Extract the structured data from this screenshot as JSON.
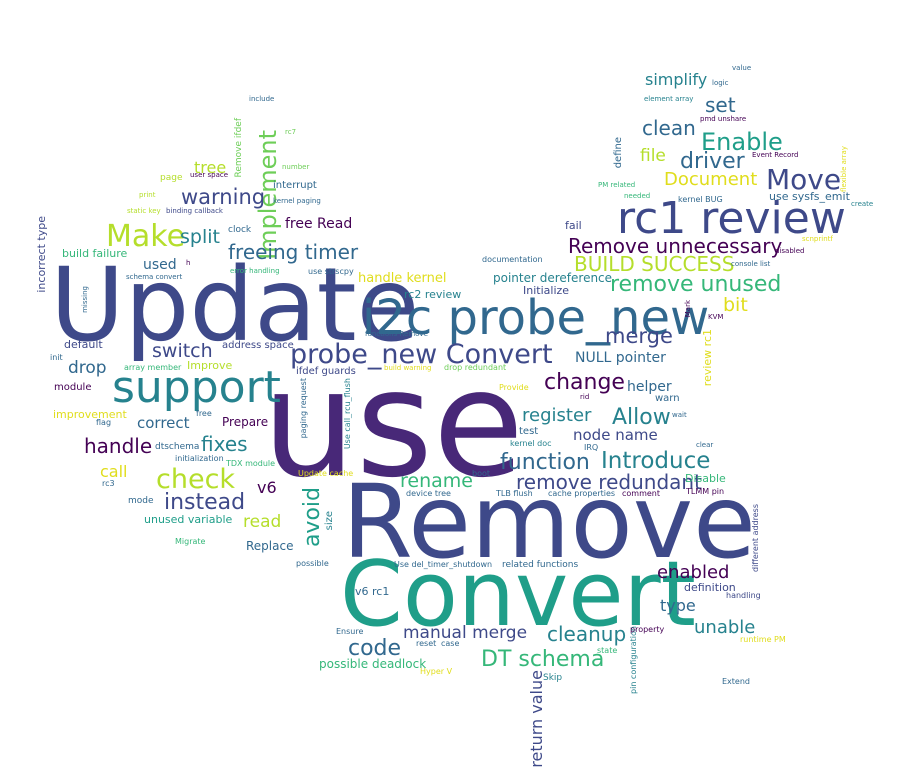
{
  "palette": {
    "dark_purple": "#440154",
    "indigo": "#482878",
    "blue_purple": "#3e4989",
    "slate_blue": "#31688e",
    "teal_blue": "#26828e",
    "teal": "#1f9e89",
    "green": "#35b779",
    "light_green": "#6ece58",
    "lime": "#b5de2b",
    "yellow": "#e0dd1c"
  },
  "words": [
    "use",
    "Remove",
    "Update",
    "Convert",
    "i2c probe_new",
    "rc1 review",
    "support",
    "probe_new Convert",
    "Make",
    "check",
    "Move",
    "DT schema",
    "Implement",
    "Enable",
    "Introduce",
    "remove unused",
    "code",
    "function",
    "change",
    "Allow",
    "driver",
    "BUILD SUCCESS",
    "remove redundant",
    "freeing timer",
    "Remove unnecessary",
    "warning",
    "instead",
    "avoid",
    "fixes",
    "unable",
    "cleanup",
    "clean",
    "merge",
    "enabled",
    "handle",
    "manual merge",
    "rename",
    "Document",
    "set",
    "return value",
    "switch",
    "read",
    "split",
    "drop",
    "register",
    "node name",
    "type",
    "simplify",
    "bit",
    "call",
    "tree",
    "correct",
    "used",
    "file",
    "v6",
    "free Read",
    "handle kernel",
    "NULL pointer",
    "helper",
    "Replace",
    "use sysfs_emit",
    "possible deadlock",
    "pointer dereference",
    "build failure",
    "Prepare",
    "unused variable",
    "incorrect type",
    "improvement",
    "Improve",
    "rc2 review",
    "default",
    "definition",
    "Disable",
    "review rc1",
    "v6 rc1",
    "address space",
    "ifdef guards",
    "size",
    "Initialize",
    "warn",
    "interrupt",
    "define",
    "module",
    "fail",
    "test",
    "mode",
    "page",
    "clock",
    "dtschema",
    "Remove ifdef",
    "related functions",
    "Use del_timer_shutdown",
    "documentation",
    "device tree",
    "TLB flush",
    "cache properties",
    "comment",
    "TLMM pin",
    "Skip",
    "state",
    "Extend",
    "Hyper V",
    "pin configuration",
    "runtime PM",
    "property",
    "handling",
    "different address",
    "Migrate",
    "possible",
    "Ensure",
    "reset",
    "case",
    "Update cache",
    "TDX module",
    "initialization",
    "flag",
    "free",
    "array member",
    "init",
    "rc3",
    "kernel doc",
    "IRQ",
    "Provide",
    "paging request",
    "Use call_rcu_flush",
    "drop redundant",
    "functions Remove",
    "build warning",
    "boot",
    "rid",
    "clear",
    "wait",
    "KVM",
    "Mark",
    "console list",
    "disabled",
    "scnprintf",
    "create",
    "flexible array",
    "Event Record",
    "kernel BUG",
    "PM related",
    "needed",
    "value",
    "logic",
    "element array",
    "pmd unshare",
    "include",
    "rc7",
    "number",
    "user space",
    "print",
    "static key",
    "binding callback",
    "kernel paging",
    "schema convert",
    "h",
    "error handling",
    "use strscpy",
    "missing"
  ]
}
